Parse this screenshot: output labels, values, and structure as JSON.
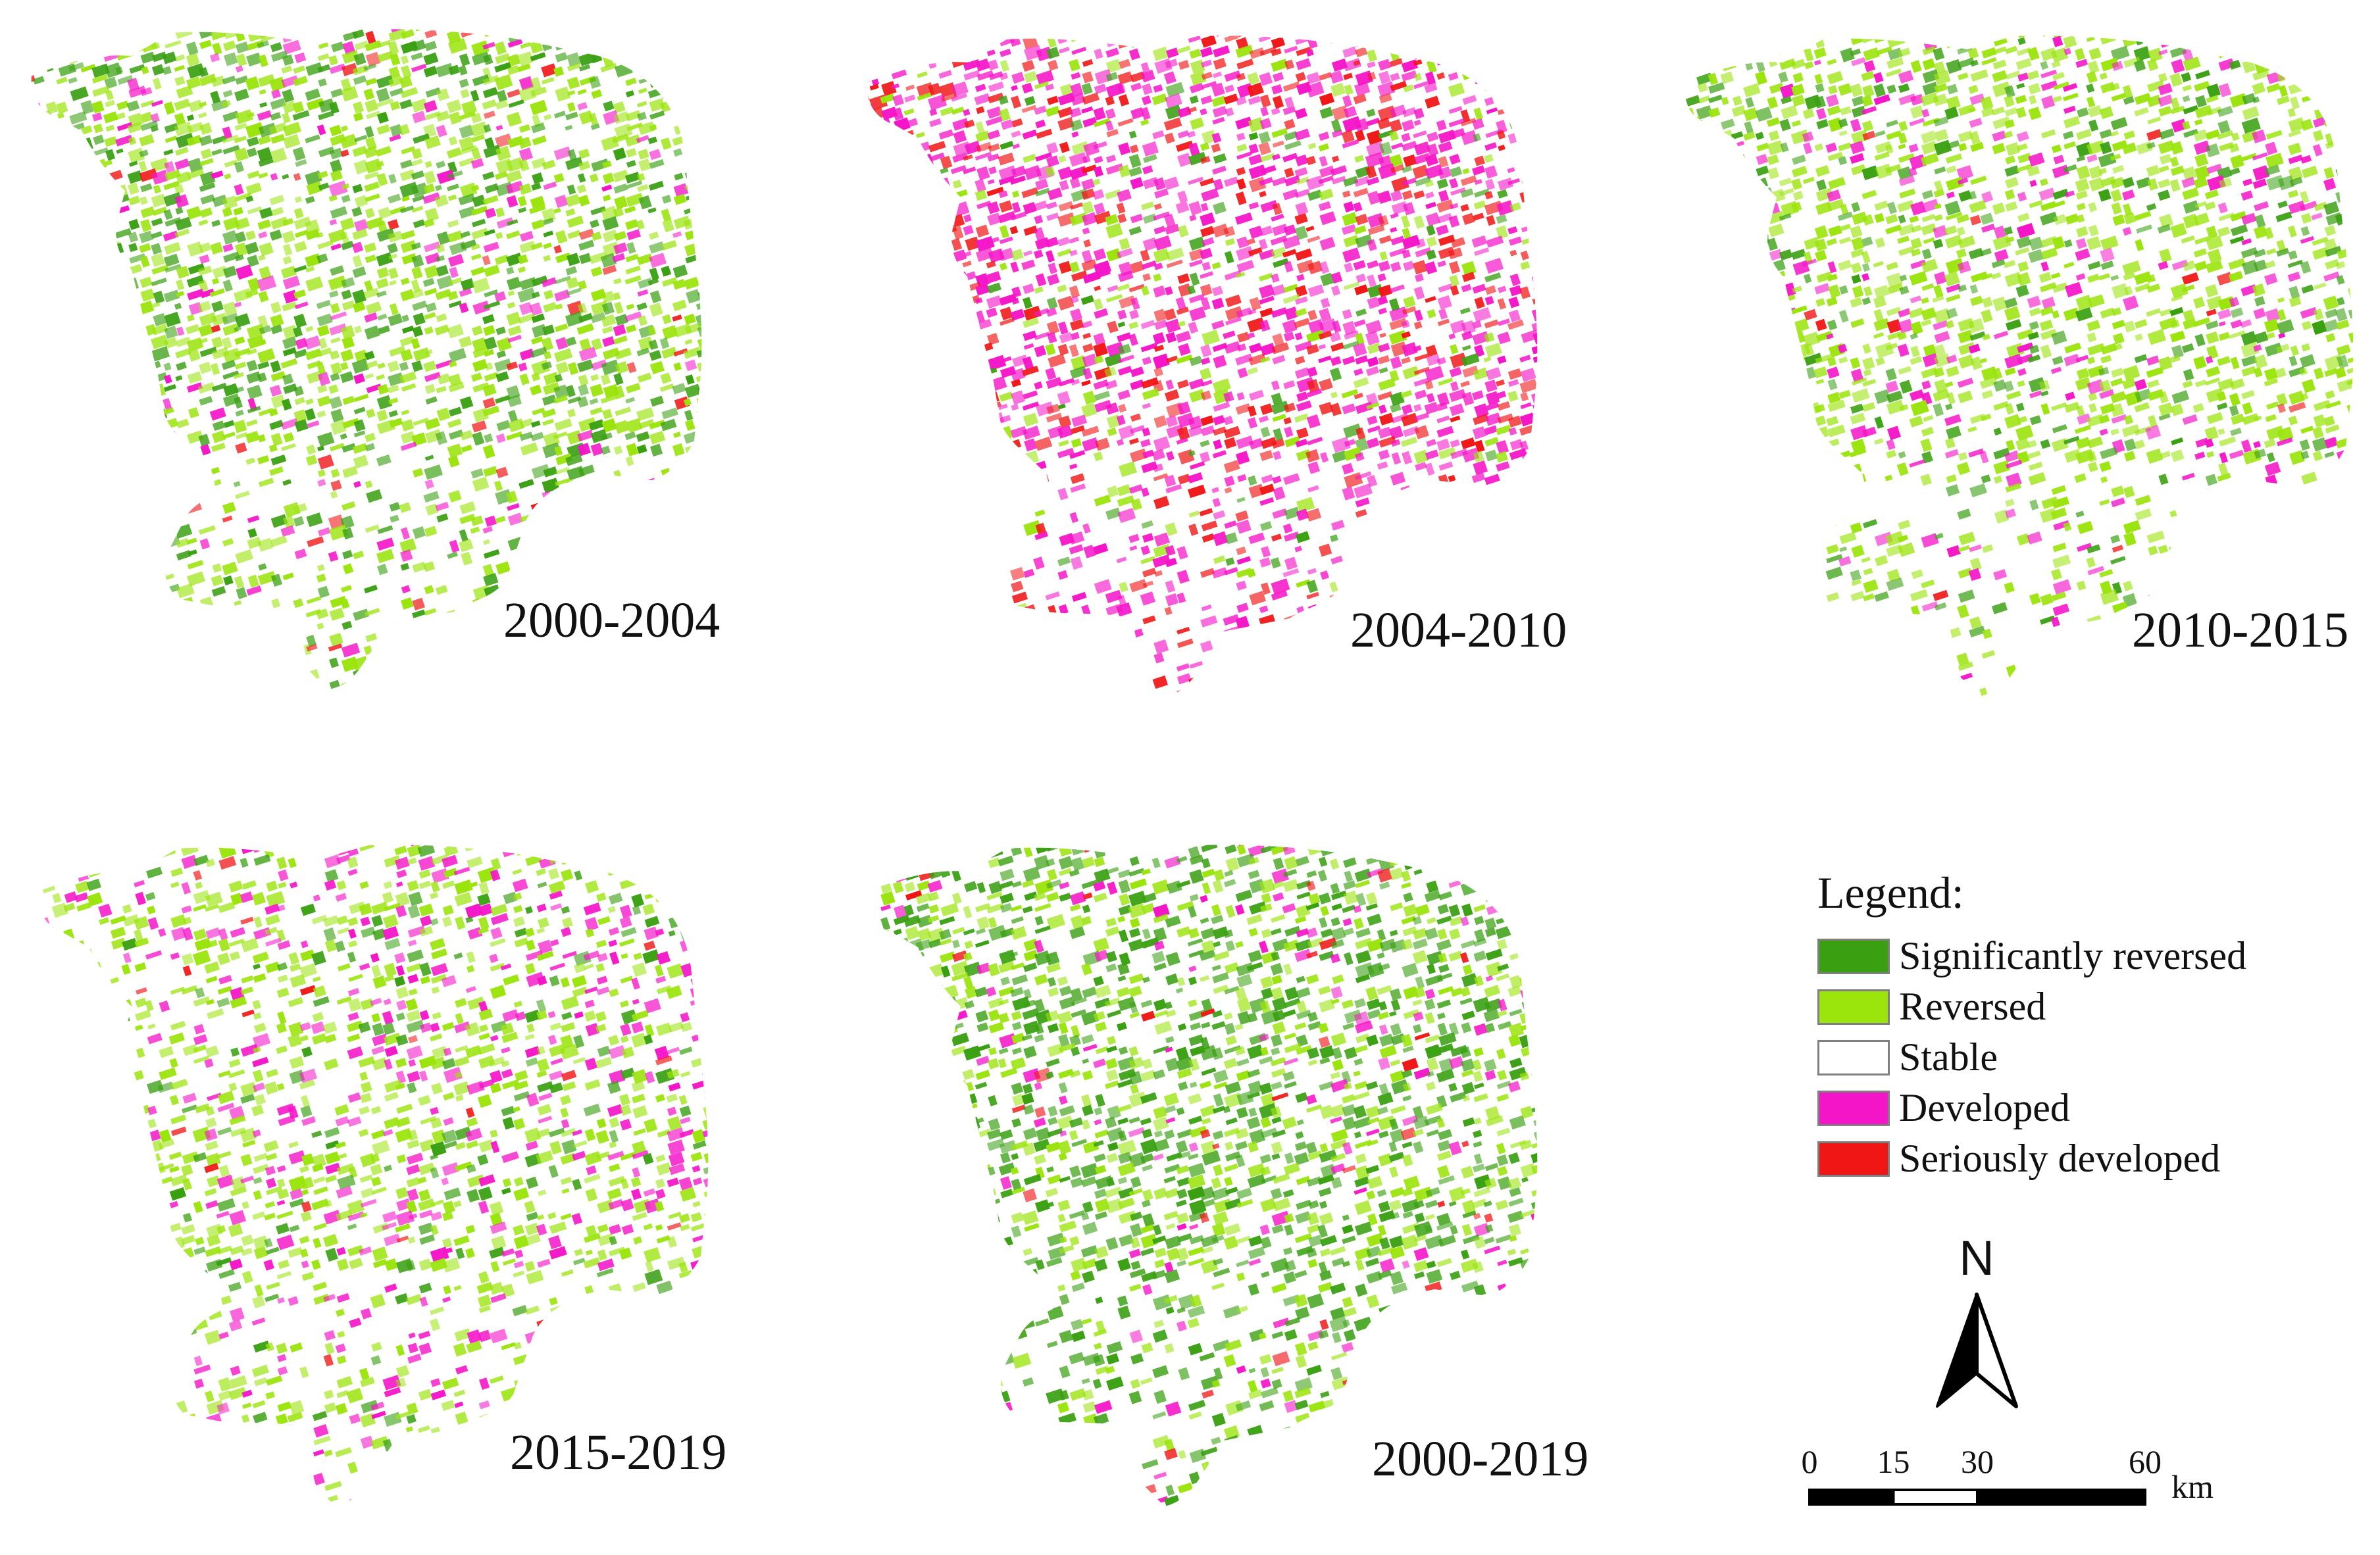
{
  "panels": [
    {
      "period": "2000-2004",
      "dominant_class": "Reversed",
      "mix": {
        "Significantly reversed": 0.25,
        "Reversed": 0.4,
        "Stable": 0.25,
        "Developed": 0.08,
        "Seriously developed": 0.02
      }
    },
    {
      "period": "2004-2010",
      "dominant_class": "Developed",
      "mix": {
        "Significantly reversed": 0.06,
        "Reversed": 0.1,
        "Stable": 0.24,
        "Developed": 0.42,
        "Seriously developed": 0.18
      }
    },
    {
      "period": "2010-2015",
      "dominant_class": "Reversed",
      "mix": {
        "Significantly reversed": 0.14,
        "Reversed": 0.42,
        "Stable": 0.32,
        "Developed": 0.11,
        "Seriously developed": 0.01
      }
    },
    {
      "period": "2015-2019",
      "dominant_class": "Stable",
      "mix": {
        "Significantly reversed": 0.08,
        "Reversed": 0.34,
        "Stable": 0.4,
        "Developed": 0.17,
        "Seriously developed": 0.01
      }
    },
    {
      "period": "2000-2019",
      "dominant_class": "Significantly reversed",
      "mix": {
        "Significantly reversed": 0.38,
        "Reversed": 0.26,
        "Stable": 0.28,
        "Developed": 0.06,
        "Seriously developed": 0.02
      }
    }
  ],
  "legend": {
    "title": "Legend:",
    "items": [
      {
        "label": "Significantly reversed",
        "color": "#3aa012"
      },
      {
        "label": "Reversed",
        "color": "#9be40c"
      },
      {
        "label": "Stable",
        "color": "#ffffff"
      },
      {
        "label": "Developed",
        "color": "#f515c8"
      },
      {
        "label": "Seriously developed",
        "color": "#f01616"
      }
    ]
  },
  "north_arrow": {
    "letter": "N"
  },
  "scale_bar": {
    "ticks": [
      "0",
      "15",
      "30",
      "60"
    ],
    "tick_values": [
      0,
      15,
      30,
      60
    ],
    "unit": "km"
  }
}
